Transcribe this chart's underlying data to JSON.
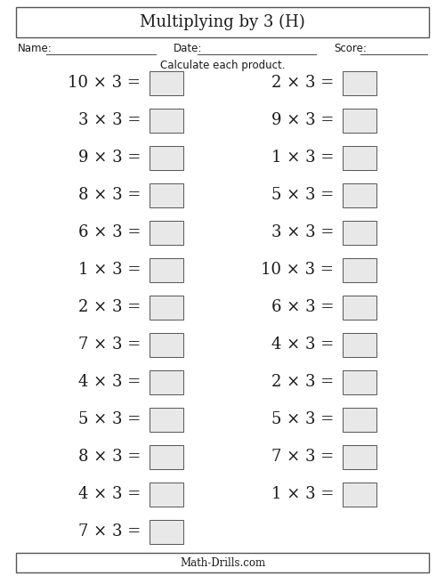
{
  "title": "Multiplying by 3 (H)",
  "title_fontsize": 13,
  "name_label": "Name:",
  "date_label": "Date:",
  "score_label": "Score:",
  "instruction": "Calculate each product.",
  "footer": "Math-Drills.com",
  "left_column": [
    "10 × 3 =",
    "3 × 3 =",
    "9 × 3 =",
    "8 × 3 =",
    "6 × 3 =",
    "1 × 3 =",
    "2 × 3 =",
    "7 × 3 =",
    "4 × 3 =",
    "5 × 3 =",
    "8 × 3 =",
    "4 × 3 =",
    "7 × 3 ="
  ],
  "right_column": [
    "2 × 3 =",
    "9 × 3 =",
    "1 × 3 =",
    "5 × 3 =",
    "3 × 3 =",
    "10 × 3 =",
    "6 × 3 =",
    "4 × 3 =",
    "2 × 3 =",
    "5 × 3 =",
    "7 × 3 =",
    "1 × 3 ="
  ],
  "bg_color": "#ffffff",
  "text_color": "#1a1a1a",
  "border_color": "#555555",
  "box_facecolor": "#e8e8e8",
  "question_fontsize": 13,
  "header_fontsize": 8.5,
  "footer_fontsize": 8.5,
  "figsize": [
    5.0,
    6.47
  ],
  "dpi": 100
}
